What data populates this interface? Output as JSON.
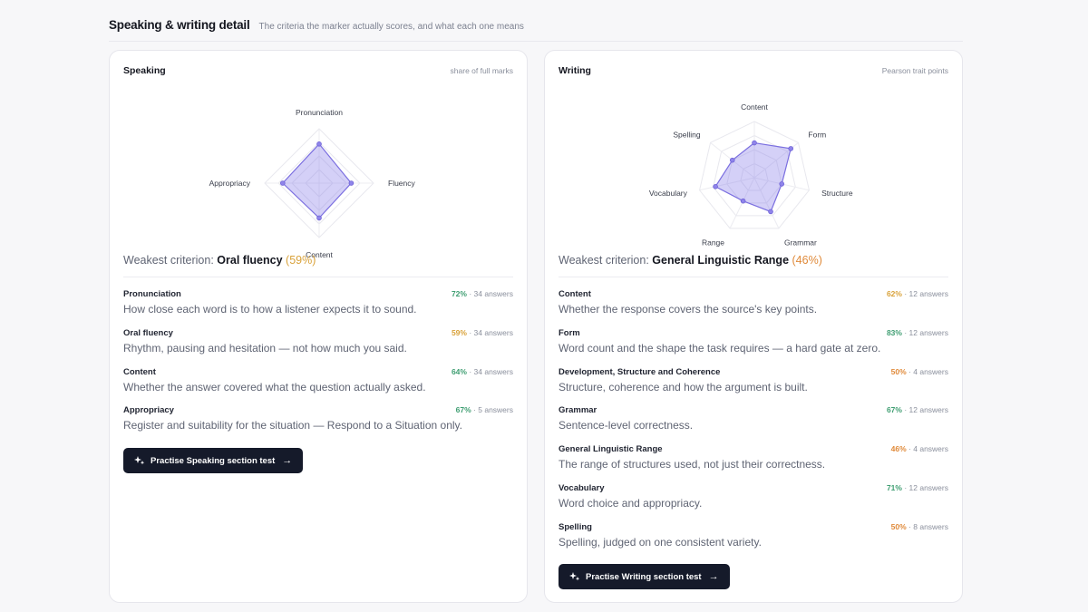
{
  "header": {
    "title": "Speaking & writing detail",
    "subtitle": "The criteria the marker actually scores, and what each one means"
  },
  "speaking": {
    "title": "Speaking",
    "note": "share of full marks",
    "radar_labels": [
      "Pronunciation",
      "Fluency",
      "Content",
      "Appropriacy"
    ],
    "radar_values": [
      72,
      59,
      64,
      67
    ],
    "weakest_prefix": "Weakest criterion:",
    "weakest_name": "Oral fluency",
    "weakest_pct": "(59%)",
    "criteria": [
      {
        "name": "Pronunciation",
        "pct": "72%",
        "answers": "· 34 answers",
        "desc": "How close each word is to how a listener expects it to sound.",
        "color": "#3f9e72"
      },
      {
        "name": "Oral fluency",
        "pct": "59%",
        "answers": "· 34 answers",
        "desc": "Rhythm, pausing and hesitation — not how much you said.",
        "color": "#d9a23a"
      },
      {
        "name": "Content",
        "pct": "64%",
        "answers": "· 34 answers",
        "desc": "Whether the answer covered what the question actually asked.",
        "color": "#3f9e72"
      },
      {
        "name": "Appropriacy",
        "pct": "67%",
        "answers": "· 5 answers",
        "desc": "Register and suitability for the situation — Respond to a Situation only.",
        "color": "#3f9e72"
      }
    ],
    "cta": "Practise Speaking section test"
  },
  "writing": {
    "title": "Writing",
    "note": "Pearson trait points",
    "radar_labels": [
      "Content",
      "Form",
      "Structure",
      "Grammar",
      "Range",
      "Vocabulary",
      "Spelling"
    ],
    "radar_values": [
      62,
      83,
      50,
      67,
      46,
      71,
      50
    ],
    "weakest_prefix": "Weakest criterion:",
    "weakest_name": "General Linguistic Range",
    "weakest_pct": "(46%)",
    "criteria": [
      {
        "name": "Content",
        "pct": "62%",
        "answers": "· 12 answers",
        "desc": "Whether the response covers the source's key points.",
        "color": "#d9a23a"
      },
      {
        "name": "Form",
        "pct": "83%",
        "answers": "· 12 answers",
        "desc": "Word count and the shape the task requires — a hard gate at zero.",
        "color": "#3f9e72"
      },
      {
        "name": "Development, Structure and Coherence",
        "pct": "50%",
        "answers": "· 4 answers",
        "desc": "Structure, coherence and how the argument is built.",
        "color": "#e08a3a"
      },
      {
        "name": "Grammar",
        "pct": "67%",
        "answers": "· 12 answers",
        "desc": "Sentence-level correctness.",
        "color": "#3f9e72"
      },
      {
        "name": "General Linguistic Range",
        "pct": "46%",
        "answers": "· 4 answers",
        "desc": "The range of structures used, not just their correctness.",
        "color": "#e08a3a"
      },
      {
        "name": "Vocabulary",
        "pct": "71%",
        "answers": "· 12 answers",
        "desc": "Word choice and appropriacy.",
        "color": "#3f9e72"
      },
      {
        "name": "Spelling",
        "pct": "50%",
        "answers": "· 8 answers",
        "desc": "Spelling, judged on one consistent variety.",
        "color": "#e08a3a"
      }
    ],
    "cta": "Practise Writing section test"
  }
}
